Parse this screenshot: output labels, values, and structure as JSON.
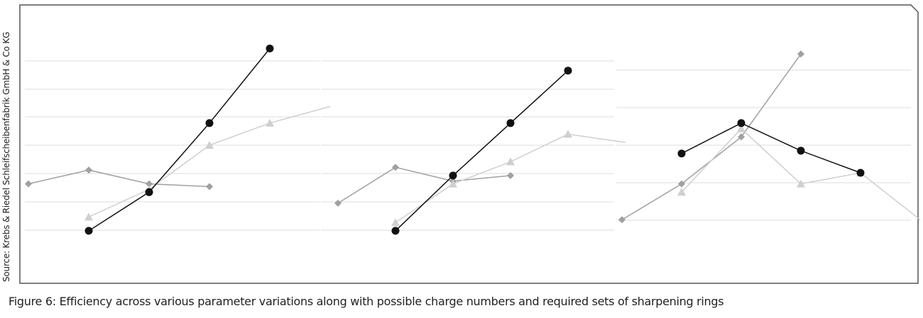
{
  "source_text": "Source: Krebs & Riedel Schleifscheibenfabrik GmbH & Co KG",
  "caption": "Figure 6: Efficiency across various parameter variations along with possible charge numbers and required sets of sharpening rings",
  "colors": {
    "frame": "#555555",
    "grid": "#dcdcdc",
    "black_series": "#111111",
    "dark_gray_series": "#a0a0a0",
    "light_gray_series": "#cfcfcf"
  },
  "chart_data": [
    {
      "type": "line",
      "panel": 1,
      "x": [
        0,
        1,
        2,
        3,
        4,
        5
      ],
      "ylim": [
        0,
        10
      ],
      "grid": true,
      "series": [
        {
          "color": "#a0a0a0",
          "marker": "diamond",
          "values": [
            3.6,
            4.1,
            3.6,
            3.5,
            null,
            null
          ]
        },
        {
          "color": "#cfcfcf",
          "marker": "triangle",
          "values": [
            null,
            2.4,
            3.4,
            5.0,
            5.8,
            6.4
          ]
        },
        {
          "color": "#111111",
          "marker": "circle",
          "values": [
            null,
            1.9,
            3.3,
            5.8,
            8.5,
            null
          ]
        }
      ]
    },
    {
      "type": "line",
      "panel": 2,
      "x": [
        0,
        1,
        2,
        3,
        4,
        5
      ],
      "ylim": [
        0,
        10
      ],
      "grid": true,
      "series": [
        {
          "color": "#a0a0a0",
          "marker": "diamond",
          "values": [
            2.9,
            4.2,
            3.7,
            3.9,
            null,
            null
          ]
        },
        {
          "color": "#cfcfcf",
          "marker": "triangle",
          "values": [
            null,
            2.2,
            3.6,
            4.4,
            5.4,
            5.1
          ]
        },
        {
          "color": "#111111",
          "marker": "circle",
          "values": [
            null,
            1.9,
            3.9,
            5.8,
            7.7,
            null
          ]
        }
      ]
    },
    {
      "type": "line",
      "panel": 3,
      "x": [
        0,
        1,
        2,
        3,
        4,
        5
      ],
      "ylim": [
        0,
        10
      ],
      "grid": true,
      "series": [
        {
          "color": "#a0a0a0",
          "marker": "diamond",
          "values": [
            2.3,
            3.6,
            5.3,
            8.3,
            null,
            null
          ]
        },
        {
          "color": "#cfcfcf",
          "marker": "triangle",
          "values": [
            null,
            3.3,
            5.6,
            3.6,
            4.0,
            2.3
          ]
        },
        {
          "color": "#111111",
          "marker": "circle",
          "values": [
            null,
            4.7,
            5.8,
            4.8,
            4.0,
            null
          ]
        }
      ]
    }
  ]
}
